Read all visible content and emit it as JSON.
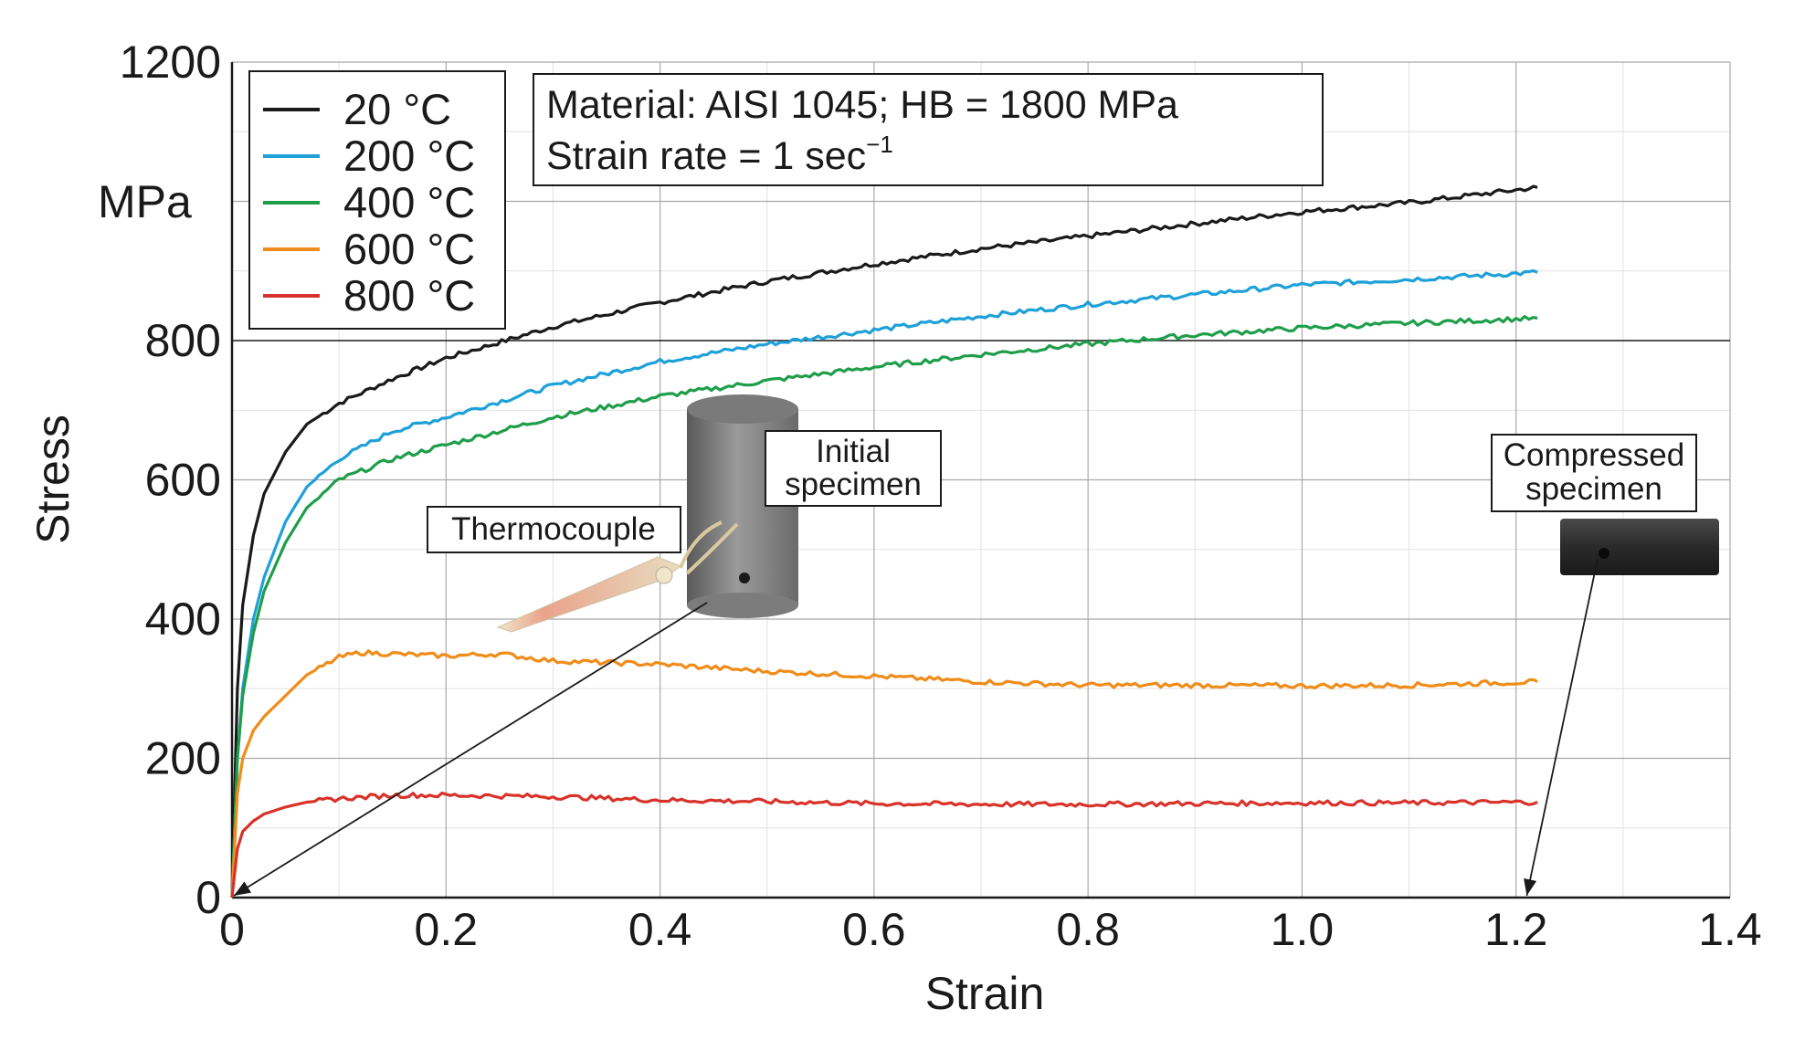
{
  "chart_data": {
    "type": "line",
    "title": "",
    "xlabel": "Strain",
    "ylabel": "Stress",
    "yunit": "MPa",
    "xlim": [
      0,
      1.4
    ],
    "ylim": [
      0,
      1200
    ],
    "xticks": [
      0,
      0.2,
      0.4,
      0.6,
      0.8,
      1.0,
      1.2,
      1.4
    ],
    "xtick_labels": [
      "0",
      "0.2",
      "0.4",
      "0.6",
      "0.8",
      "1.0",
      "1.2",
      "1.4"
    ],
    "yticks": [
      0,
      200,
      400,
      600,
      800,
      1200
    ],
    "ytick_labels": [
      "0",
      "200",
      "400",
      "600",
      "800",
      "1200"
    ],
    "grid": true,
    "legend_position": "top-left",
    "series": [
      {
        "name": "20 °C",
        "color": "#1a1a1a",
        "x": [
          0,
          0.005,
          0.01,
          0.02,
          0.03,
          0.05,
          0.07,
          0.1,
          0.15,
          0.2,
          0.3,
          0.4,
          0.5,
          0.6,
          0.7,
          0.8,
          0.9,
          1.0,
          1.1,
          1.22
        ],
        "y": [
          0,
          300,
          420,
          520,
          580,
          640,
          680,
          710,
          745,
          775,
          820,
          855,
          885,
          910,
          932,
          950,
          968,
          985,
          998,
          1020
        ]
      },
      {
        "name": "200 °C",
        "color": "#1ea0d8",
        "x": [
          0,
          0.005,
          0.01,
          0.02,
          0.03,
          0.05,
          0.07,
          0.1,
          0.15,
          0.2,
          0.3,
          0.4,
          0.5,
          0.6,
          0.7,
          0.8,
          0.9,
          1.0,
          1.1,
          1.22
        ],
        "y": [
          0,
          200,
          300,
          400,
          460,
          540,
          590,
          630,
          670,
          690,
          735,
          770,
          795,
          815,
          835,
          852,
          866,
          880,
          888,
          898
        ]
      },
      {
        "name": "400 °C",
        "color": "#1f9e4a",
        "x": [
          0,
          0.005,
          0.01,
          0.02,
          0.03,
          0.05,
          0.07,
          0.1,
          0.15,
          0.2,
          0.3,
          0.4,
          0.5,
          0.6,
          0.7,
          0.8,
          0.9,
          1.0,
          1.1,
          1.22
        ],
        "y": [
          0,
          200,
          290,
          380,
          440,
          510,
          560,
          600,
          630,
          650,
          690,
          720,
          742,
          762,
          780,
          795,
          808,
          818,
          825,
          832
        ]
      },
      {
        "name": "600 °C",
        "color": "#f08c1a",
        "x": [
          0,
          0.005,
          0.01,
          0.02,
          0.03,
          0.05,
          0.07,
          0.1,
          0.12,
          0.15,
          0.2,
          0.25,
          0.3,
          0.4,
          0.5,
          0.6,
          0.7,
          0.8,
          0.9,
          1.0,
          1.1,
          1.22
        ],
        "y": [
          0,
          150,
          200,
          240,
          260,
          290,
          320,
          345,
          352,
          350,
          347,
          350,
          340,
          335,
          325,
          318,
          310,
          305,
          305,
          304,
          305,
          310
        ]
      },
      {
        "name": "800 °C",
        "color": "#d8322a",
        "x": [
          0,
          0.005,
          0.01,
          0.02,
          0.03,
          0.05,
          0.07,
          0.1,
          0.15,
          0.2,
          0.3,
          0.4,
          0.5,
          0.6,
          0.7,
          0.8,
          0.9,
          1.0,
          1.1,
          1.22
        ],
        "y": [
          0,
          70,
          95,
          110,
          120,
          130,
          137,
          142,
          147,
          147,
          145,
          140,
          138,
          135,
          134,
          134,
          135,
          136,
          136,
          137
        ]
      }
    ],
    "annotations": {
      "material_line1": "Material: AISI 1045; HB = 1800 MPa",
      "material_line2_prefix": "Strain rate = 1 sec",
      "material_line2_sup": "−1",
      "initial_line1": "Initial",
      "initial_line2": "specimen",
      "thermocouple": "Thermocouple",
      "compressed_line1": "Compressed",
      "compressed_line2": "specimen",
      "initial_arrow_target": [
        0,
        0
      ],
      "compressed_arrow_target": [
        1.21,
        0
      ]
    }
  }
}
